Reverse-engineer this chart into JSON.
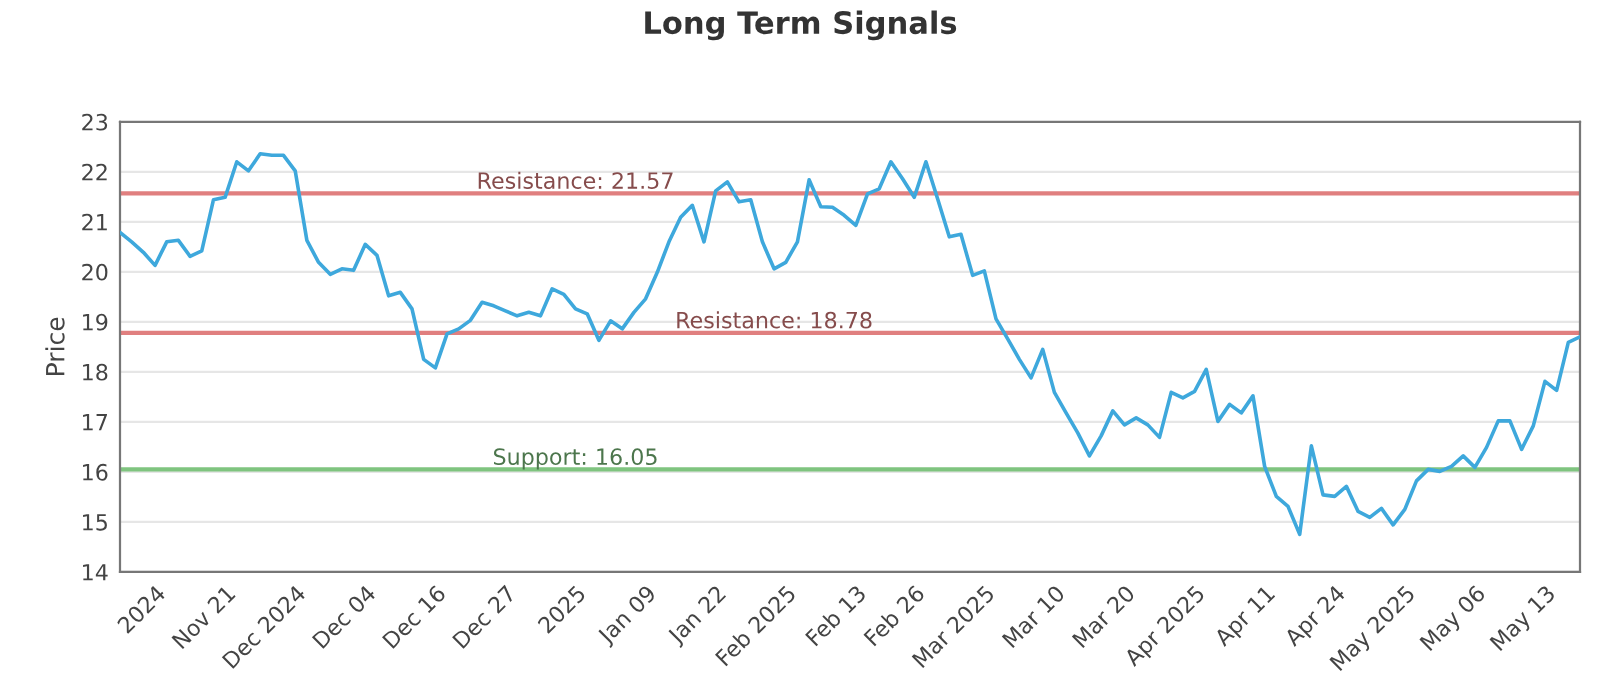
{
  "chart_data": {
    "type": "line",
    "title": "Long Term Signals",
    "ylabel": "Price",
    "categories": [
      null,
      null,
      null,
      "2024",
      null,
      null,
      null,
      null,
      null,
      "Nov 21",
      null,
      null,
      null,
      null,
      null,
      "Dec 2024",
      null,
      null,
      null,
      null,
      null,
      "Dec 04",
      null,
      null,
      null,
      null,
      null,
      "Dec 16",
      null,
      null,
      null,
      null,
      null,
      "Dec 27",
      null,
      null,
      null,
      null,
      null,
      "2025",
      null,
      null,
      null,
      null,
      null,
      "Jan 09",
      null,
      null,
      null,
      null,
      null,
      "Jan 22",
      null,
      null,
      null,
      null,
      null,
      "Feb 2025",
      null,
      null,
      null,
      null,
      null,
      "Feb 13",
      null,
      null,
      null,
      null,
      "Feb 26",
      null,
      null,
      null,
      null,
      null,
      "Mar 2025",
      null,
      null,
      null,
      null,
      null,
      "Mar 10",
      null,
      null,
      null,
      null,
      null,
      "Mar 20",
      null,
      null,
      null,
      null,
      null,
      "Apr 2025",
      null,
      null,
      null,
      null,
      null,
      "Apr 11",
      null,
      null,
      null,
      null,
      null,
      "Apr 24",
      null,
      null,
      null,
      null,
      null,
      "May 2025",
      null,
      null,
      null,
      null,
      null,
      "May 06",
      null,
      null,
      null,
      null,
      null,
      "May 13",
      null,
      null,
      null
    ],
    "series": [
      {
        "color": "#3ea8dc",
        "values": [
          20.79,
          20.6,
          20.39,
          20.13,
          20.6,
          20.63,
          20.31,
          20.42,
          21.44,
          21.49,
          22.2,
          22.02,
          22.36,
          22.33,
          22.33,
          22.02,
          20.63,
          20.19,
          19.95,
          20.06,
          20.03,
          20.55,
          20.33,
          19.52,
          19.59,
          19.26,
          18.25,
          18.08,
          18.76,
          18.86,
          19.03,
          19.39,
          19.32,
          19.22,
          19.12,
          19.19,
          19.12,
          19.66,
          19.55,
          19.26,
          19.16,
          18.63,
          19.02,
          18.86,
          19.19,
          19.46,
          19.99,
          20.6,
          21.09,
          21.33,
          20.6,
          21.62,
          21.8,
          21.4,
          21.44,
          20.6,
          20.06,
          20.19,
          20.6,
          21.84,
          21.3,
          21.29,
          21.13,
          20.93,
          21.56,
          21.66,
          22.2,
          21.86,
          21.49,
          22.2,
          21.46,
          20.7,
          20.75,
          19.93,
          20.02,
          19.06,
          18.66,
          18.25,
          17.88,
          18.45,
          17.59,
          17.18,
          16.78,
          16.32,
          16.72,
          17.22,
          16.94,
          17.08,
          16.94,
          16.69,
          17.59,
          17.48,
          17.61,
          18.05,
          17.01,
          17.35,
          17.18,
          17.52,
          16.11,
          15.51,
          15.31,
          14.75,
          16.52,
          15.54,
          15.51,
          15.71,
          15.21,
          15.09,
          15.27,
          14.94,
          15.25,
          15.82,
          16.05,
          16.01,
          16.11,
          16.32,
          16.09,
          16.49,
          17.02,
          17.02,
          16.45,
          16.92,
          17.81,
          17.63,
          18.59,
          18.7
        ]
      }
    ],
    "ylim": [
      14,
      23
    ],
    "yticks": [
      14,
      15,
      16,
      17,
      18,
      19,
      20,
      21,
      22,
      23
    ],
    "grid": "y",
    "ref_lines": [
      {
        "axis": "y",
        "value": 21.57,
        "label": "Resistance: 21.57",
        "color": "#e07f7f"
      },
      {
        "axis": "y",
        "value": 18.78,
        "label": "Resistance: 18.78",
        "color": "#e07f7f"
      },
      {
        "axis": "y",
        "value": 16.05,
        "label": "Support: 16.05",
        "color": "#7fc47f"
      }
    ]
  }
}
